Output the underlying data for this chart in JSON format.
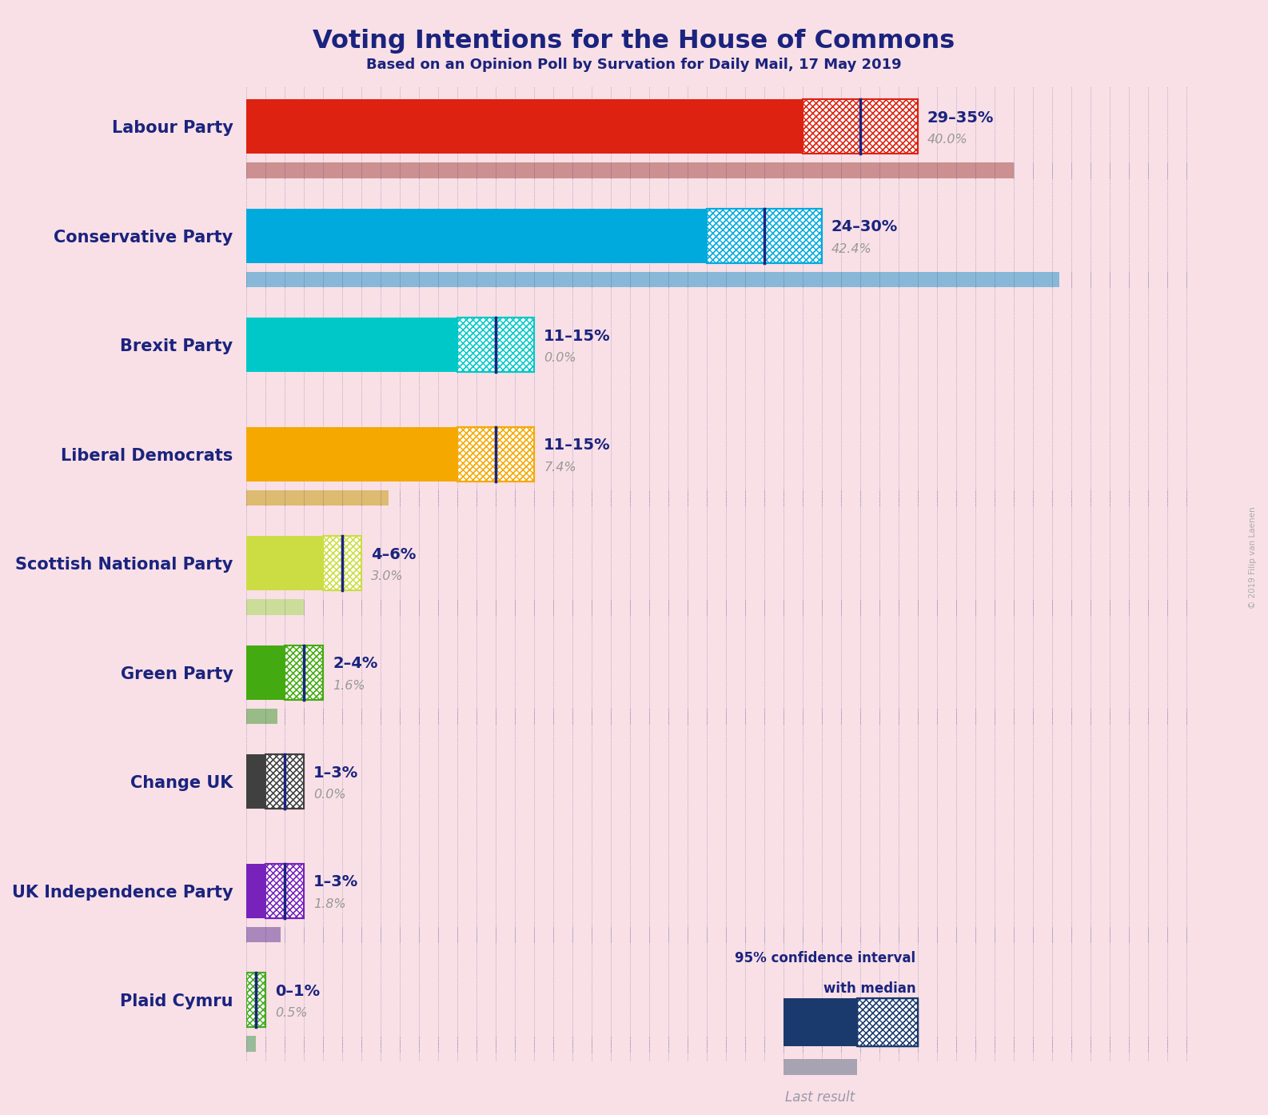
{
  "title": "Voting Intentions for the House of Commons",
  "subtitle": "Based on an Opinion Poll by Survation for Daily Mail, 17 May 2019",
  "background_color": "#f9e0e6",
  "title_color": "#1a237e",
  "subtitle_color": "#1a237e",
  "parties": [
    "Labour Party",
    "Conservative Party",
    "Brexit Party",
    "Liberal Democrats",
    "Scottish National Party",
    "Green Party",
    "Change UK",
    "UK Independence Party",
    "Plaid Cymru"
  ],
  "bar_colors": [
    "#dd2211",
    "#00aadd",
    "#00c8c8",
    "#f5a800",
    "#ccdd44",
    "#44aa11",
    "#404040",
    "#7722bb",
    "#44aa22"
  ],
  "last_result_colors": [
    "#cc9090",
    "#88b8d8",
    "#88c0c0",
    "#ddbb70",
    "#ccdd99",
    "#99bb88",
    "#999999",
    "#aa88bb",
    "#99bb99"
  ],
  "ci_low": [
    29,
    24,
    11,
    11,
    4,
    2,
    1,
    1,
    0
  ],
  "ci_high": [
    35,
    30,
    15,
    15,
    6,
    4,
    3,
    3,
    1
  ],
  "ci_median": [
    32,
    27,
    13,
    13,
    5,
    3,
    2,
    2,
    0.5
  ],
  "last_result": [
    40.0,
    42.4,
    0.0,
    7.4,
    3.0,
    1.6,
    0.0,
    1.8,
    0.5
  ],
  "ci_label": [
    "29–35%",
    "24–30%",
    "11–15%",
    "11–15%",
    "4–6%",
    "2–4%",
    "1–3%",
    "1–3%",
    "0–1%"
  ],
  "last_result_label": [
    "40.0%",
    "42.4%",
    "0.0%",
    "7.4%",
    "3.0%",
    "1.6%",
    "0.0%",
    "1.8%",
    "0.5%"
  ],
  "x_max": 50,
  "legend_ci_text1": "95% confidence interval",
  "legend_ci_text2": "with median",
  "legend_last_text": "Last result",
  "copyright_text": "© 2019 Filip van Laenen",
  "dot_color": "#1a237e",
  "legend_navy": "#1a3a6e",
  "legend_last_gray": "#9999aa"
}
